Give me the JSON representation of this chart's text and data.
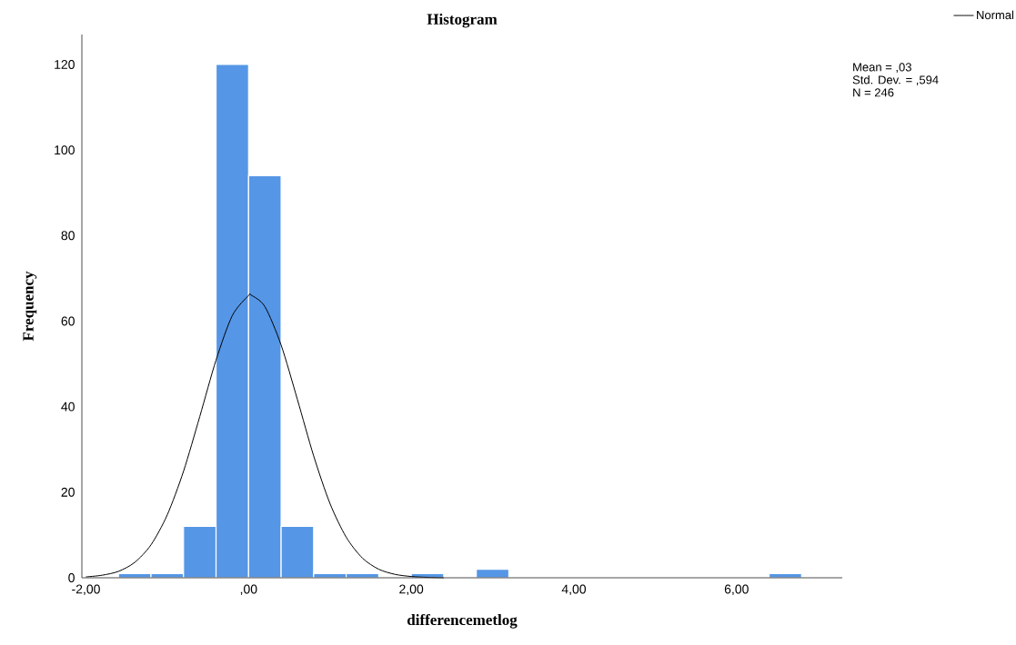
{
  "chart_data": {
    "type": "histogram",
    "title": "Histogram",
    "xlabel": "differencemetlog",
    "ylabel": "Frequency",
    "bins": [
      -1.6,
      -1.2,
      -0.8,
      -0.4,
      0,
      0.4,
      0.8,
      1.2,
      1.6,
      2.0,
      2.4,
      2.8,
      3.2,
      3.6,
      4.0,
      4.4,
      4.8,
      5.2,
      5.6,
      6.0,
      6.4,
      6.8
    ],
    "values": [
      1,
      1,
      12,
      120,
      94,
      12,
      1,
      1,
      0,
      1,
      0,
      2,
      0,
      0,
      0,
      0,
      0,
      0,
      0,
      0,
      1
    ],
    "color": "#5596e6",
    "series": [
      {
        "name": "Normal",
        "type": "line",
        "color": "#000000",
        "x": [
          -2.0,
          -1.8,
          -1.6,
          -1.4,
          -1.2,
          -1.0,
          -0.8,
          -0.6,
          -0.4,
          -0.2,
          0.0,
          0.03,
          0.2,
          0.4,
          0.6,
          0.8,
          1.0,
          1.2,
          1.4,
          1.6,
          1.8,
          2.0,
          2.2,
          2.4
        ],
        "values": [
          0.2,
          0.6,
          1.5,
          3.6,
          7.7,
          14.7,
          24.9,
          37.7,
          50.9,
          61.3,
          66.0,
          66.1,
          63.4,
          54.4,
          41.7,
          28.5,
          17.4,
          9.5,
          4.6,
          2.0,
          0.8,
          0.3,
          0.1,
          0.0
        ]
      }
    ],
    "xlim": [
      -2.05,
      7.3
    ],
    "ylim": [
      0,
      127
    ],
    "xticks": [
      {
        "value": -2,
        "label": "-2,00"
      },
      {
        "value": 0,
        "label": ",00"
      },
      {
        "value": 2,
        "label": "2,00"
      },
      {
        "value": 4,
        "label": "4,00"
      },
      {
        "value": 6,
        "label": "6,00"
      }
    ],
    "yticks": [
      0,
      20,
      40,
      60,
      80,
      100,
      120
    ],
    "legend": "top right",
    "annotations": [
      "Mean = ,03",
      "Std. Dev. = ,594",
      "N = 246"
    ]
  }
}
